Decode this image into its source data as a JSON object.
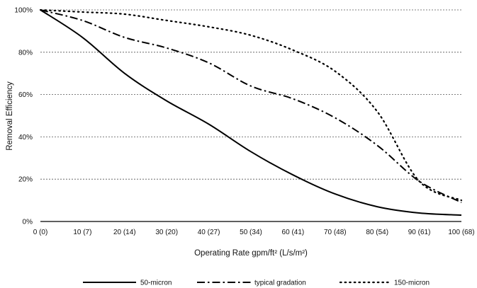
{
  "chart_data": {
    "type": "line",
    "title": "",
    "xlabel": "Operating Rate gpm/ft² (L/s/m²)",
    "ylabel": "Removal Efficiency",
    "categories": [
      "0 (0)",
      "10 (7)",
      "20 (14)",
      "30 (20)",
      "40 (27)",
      "50 (34)",
      "60 (41)",
      "70 (48)",
      "80 (54)",
      "90 (61)",
      "100 (68)"
    ],
    "x": [
      0,
      10,
      20,
      30,
      40,
      50,
      60,
      70,
      80,
      90,
      100
    ],
    "xlim": [
      0,
      100
    ],
    "ylim": [
      0,
      100
    ],
    "yticks": [
      0,
      20,
      40,
      60,
      80,
      100
    ],
    "ytick_labels": [
      "0%",
      "20%",
      "40%",
      "60%",
      "80%",
      "100%"
    ],
    "grid": "horizontal dashed lines at each y tick",
    "legend_position": "bottom",
    "series": [
      {
        "name": "50-micron",
        "style": "solid",
        "color": "#000000",
        "values": [
          100,
          87,
          70,
          57,
          46,
          33,
          22,
          13,
          7,
          4,
          3
        ]
      },
      {
        "name": "typical gradation",
        "style": "dash-dot",
        "color": "#000000",
        "values": [
          100,
          95,
          87,
          82,
          75,
          64,
          58,
          49,
          36,
          19,
          9
        ]
      },
      {
        "name": "150-micron",
        "style": "dotted",
        "color": "#000000",
        "values": [
          100,
          99,
          98,
          95,
          92,
          88,
          81,
          71,
          52,
          19,
          10
        ]
      }
    ]
  }
}
